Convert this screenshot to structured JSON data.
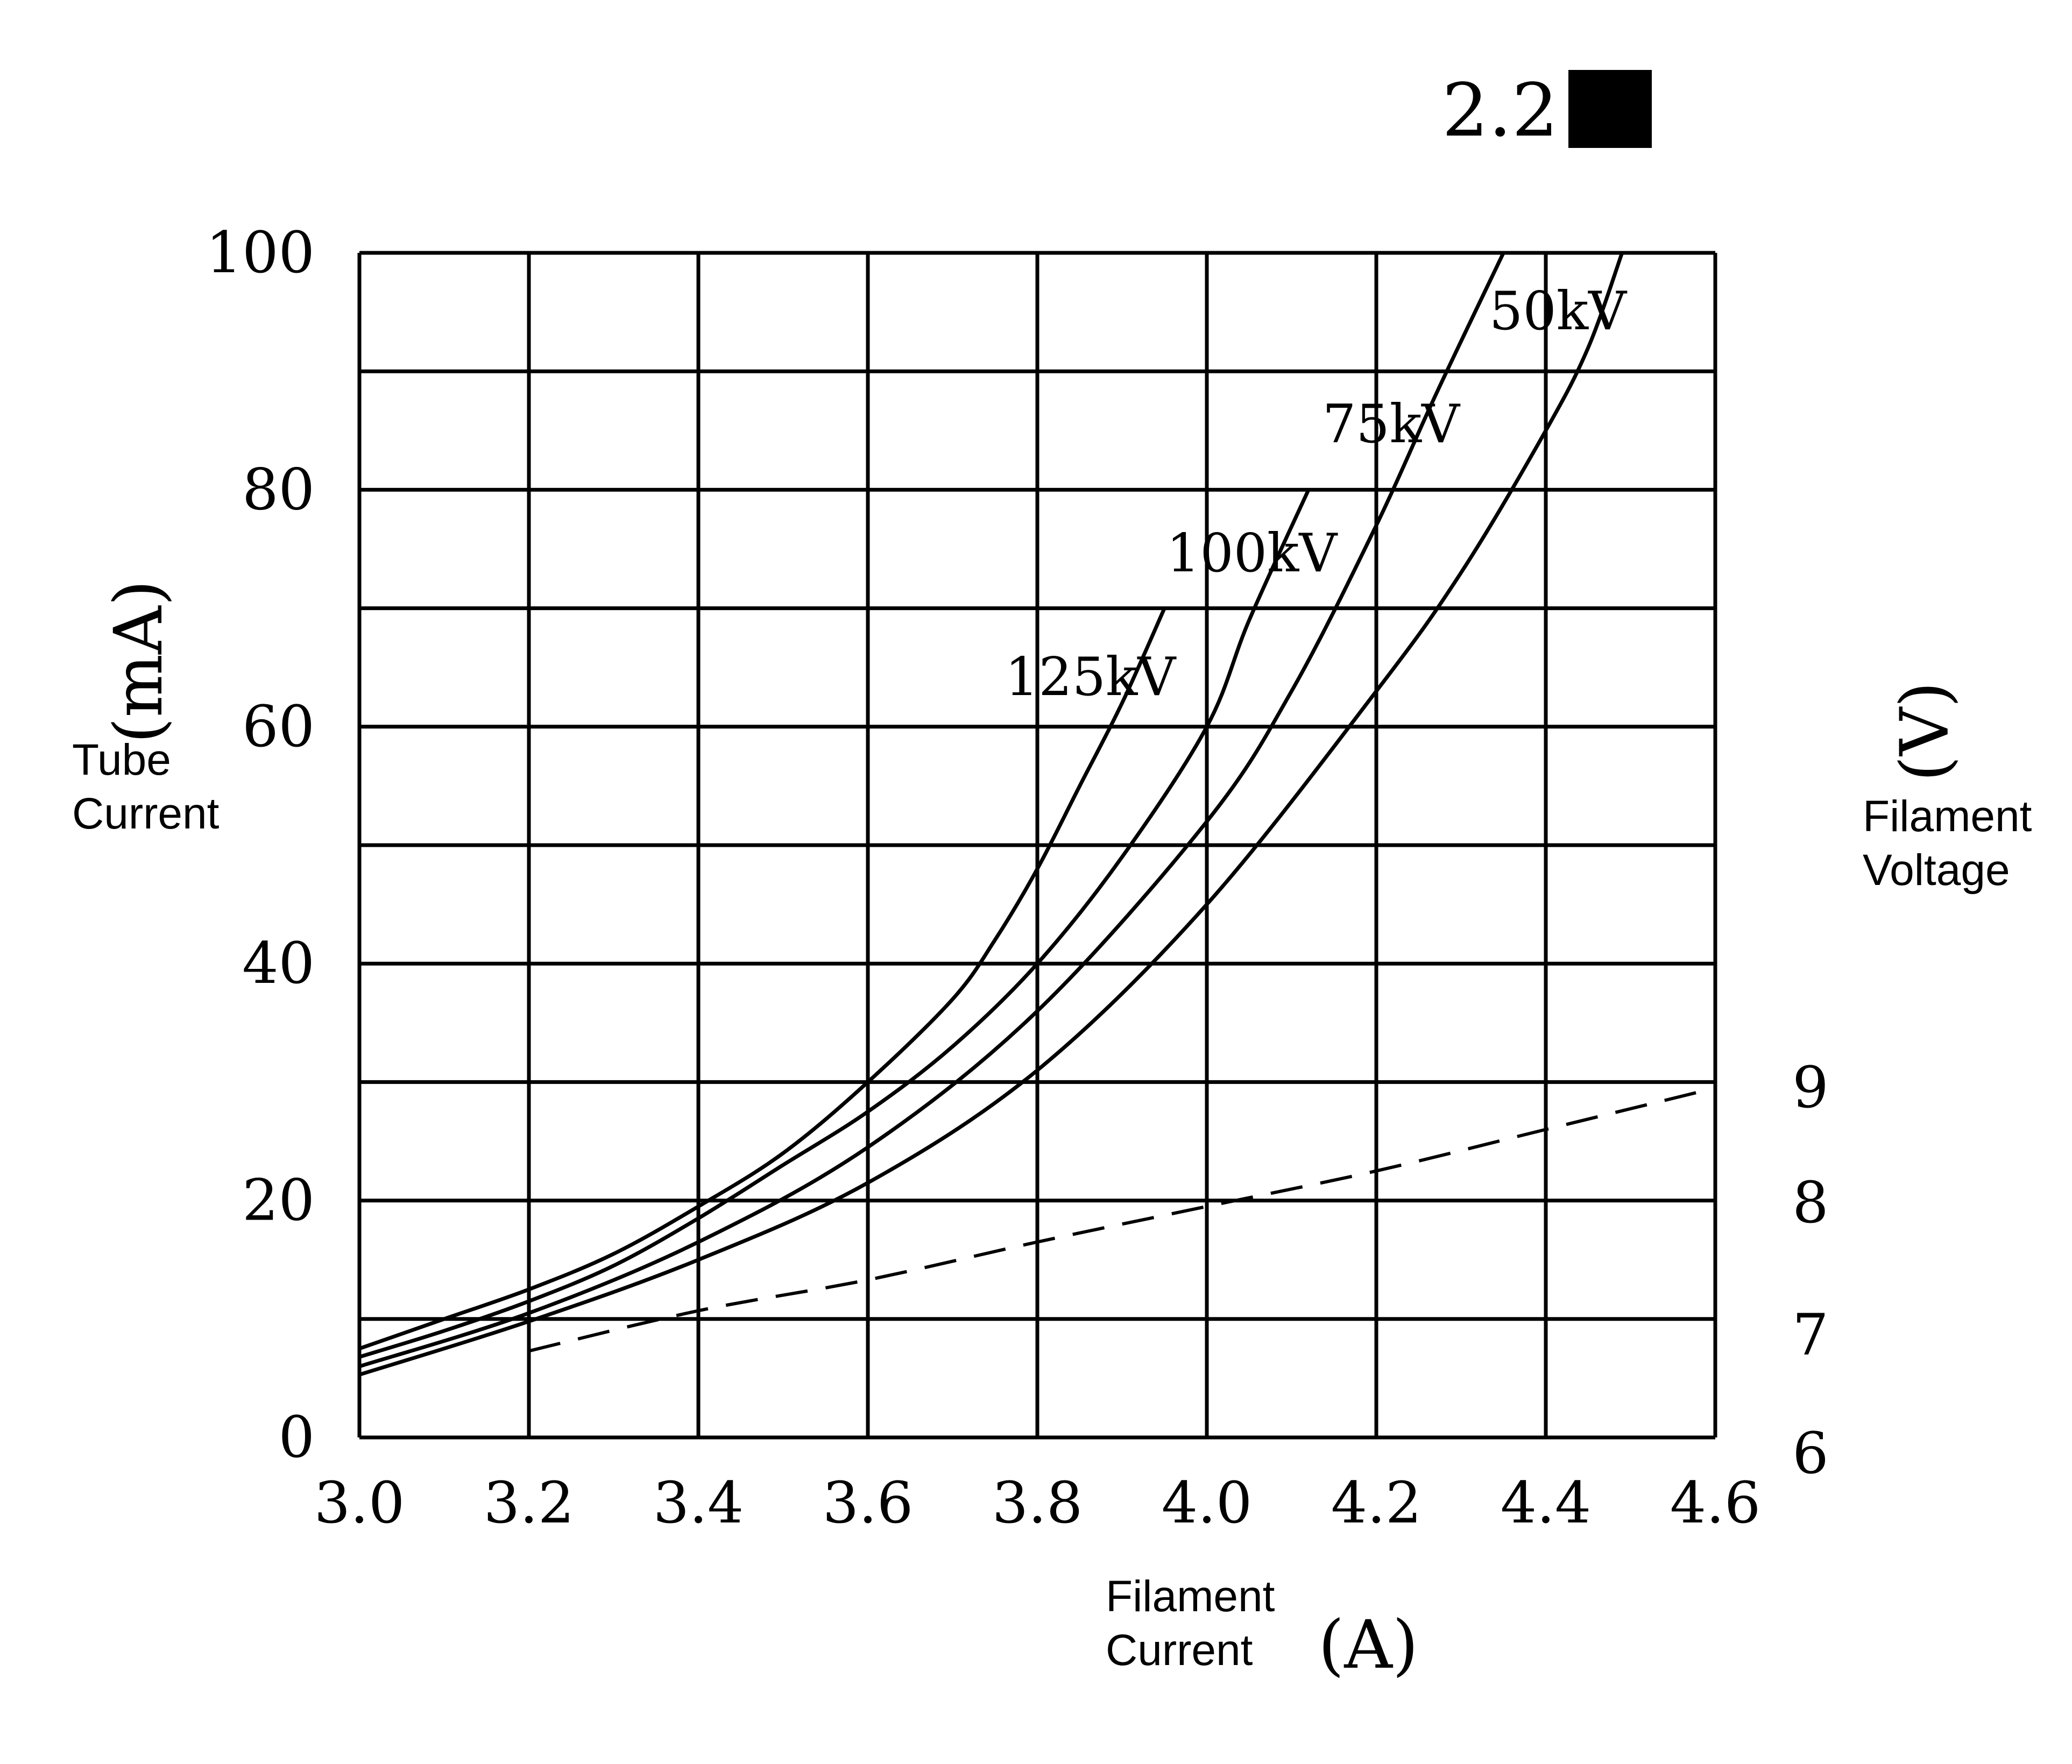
{
  "chart_data": {
    "type": "line",
    "badge": {
      "text": "2.2"
    },
    "x": {
      "label_line1": "Filament",
      "label_line2": "Current",
      "unit": "(A)",
      "ticks": [
        "3.0",
        "3.2",
        "3.4",
        "3.6",
        "3.8",
        "4.0",
        "4.2",
        "4.4",
        "4.6"
      ],
      "range": [
        3.0,
        4.6
      ]
    },
    "y_left": {
      "label_line1": "Tube",
      "label_line2": "Current",
      "unit": "(mA)",
      "ticks": [
        "0",
        "20",
        "40",
        "60",
        "80",
        "100"
      ],
      "range": [
        0,
        100
      ]
    },
    "y_right": {
      "label_line1": "Filament",
      "label_line2": "Voltage",
      "unit": "(V)",
      "ticks": [
        "6",
        "7",
        "8",
        "9"
      ]
    },
    "grid": true,
    "series": [
      {
        "name": "125kV",
        "points": [
          [
            3.0,
            7.5
          ],
          [
            3.1,
            10
          ],
          [
            3.2,
            12.5
          ],
          [
            3.3,
            15.5
          ],
          [
            3.4,
            19.5
          ],
          [
            3.5,
            24
          ],
          [
            3.6,
            30
          ],
          [
            3.7,
            37
          ],
          [
            3.75,
            42
          ],
          [
            3.8,
            48
          ],
          [
            3.85,
            55
          ],
          [
            3.9,
            62
          ],
          [
            3.95,
            70
          ]
        ]
      },
      {
        "name": "100kV",
        "points": [
          [
            3.0,
            6.8
          ],
          [
            3.1,
            9
          ],
          [
            3.2,
            11.5
          ],
          [
            3.3,
            14.5
          ],
          [
            3.4,
            18.5
          ],
          [
            3.5,
            23
          ],
          [
            3.6,
            27.5
          ],
          [
            3.7,
            33
          ],
          [
            3.8,
            40
          ],
          [
            3.9,
            49
          ],
          [
            4.0,
            60
          ],
          [
            4.05,
            69
          ],
          [
            4.12,
            80
          ]
        ]
      },
      {
        "name": "75kV",
        "points": [
          [
            3.0,
            6
          ],
          [
            3.2,
            10.5
          ],
          [
            3.4,
            16.5
          ],
          [
            3.6,
            24.5
          ],
          [
            3.8,
            36
          ],
          [
            4.0,
            52
          ],
          [
            4.1,
            63
          ],
          [
            4.2,
            77
          ],
          [
            4.27,
            88
          ],
          [
            4.35,
            100
          ]
        ]
      },
      {
        "name": "50kV",
        "points": [
          [
            3.0,
            5.3
          ],
          [
            3.2,
            9.8
          ],
          [
            3.4,
            15
          ],
          [
            3.6,
            21.5
          ],
          [
            3.8,
            31
          ],
          [
            4.0,
            45
          ],
          [
            4.2,
            63
          ],
          [
            4.3,
            73
          ],
          [
            4.4,
            85
          ],
          [
            4.45,
            92
          ],
          [
            4.49,
            100
          ]
        ]
      }
    ],
    "voltage_line": {
      "style": "dashed",
      "points": [
        [
          3.2,
          7.3
        ],
        [
          3.4,
          10.7
        ],
        [
          3.6,
          13.3
        ],
        [
          3.8,
          16.5
        ],
        [
          4.0,
          19.5
        ],
        [
          4.2,
          22.5
        ],
        [
          4.4,
          26
        ],
        [
          4.6,
          29.5
        ]
      ]
    }
  }
}
